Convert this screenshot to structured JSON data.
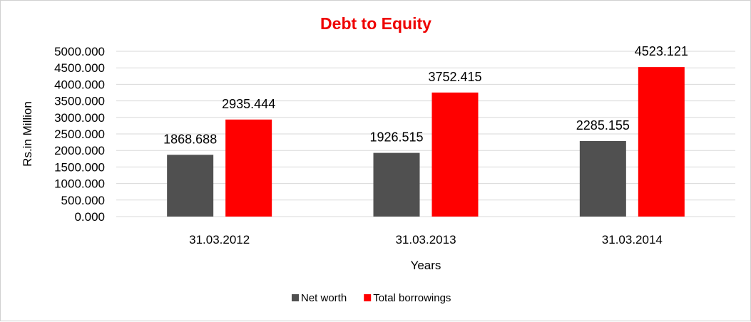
{
  "chart_data": {
    "type": "bar",
    "title": "Debt to Equity",
    "title_color": "#ee0000",
    "xlabel": "Years",
    "ylabel": "Rs.in Million",
    "categories": [
      "31.03.2012",
      "31.03.2013",
      "31.03.2014"
    ],
    "series": [
      {
        "name": "Net worth",
        "color": "#505050",
        "values": [
          1868.688,
          1926.515,
          2285.155
        ],
        "labels": [
          "1868.688",
          "1926.515",
          "2285.155"
        ]
      },
      {
        "name": "Total borrowings",
        "color": "#ff0000",
        "values": [
          2935.444,
          3752.415,
          4523.121
        ],
        "labels": [
          "2935.444",
          "3752.415",
          "4523.121"
        ]
      }
    ],
    "ylim": [
      0,
      5000
    ],
    "yticks": [
      "0.000",
      "500.000",
      "1000.000",
      "1500.000",
      "2000.000",
      "2500.000",
      "3000.000",
      "3500.000",
      "4000.000",
      "4500.000",
      "5000.000"
    ],
    "grid": true,
    "legend_position": "bottom"
  }
}
